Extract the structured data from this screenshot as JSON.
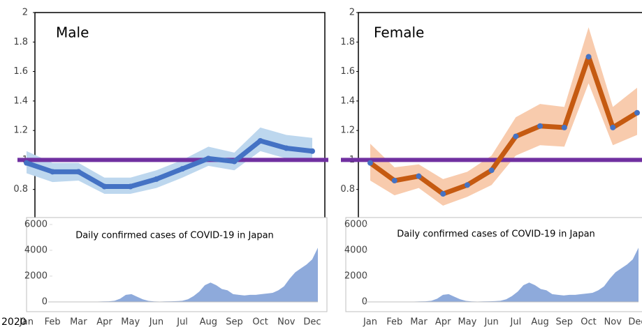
{
  "chart_data": [
    {
      "type": "line",
      "title": "Male",
      "xlabel": "2020",
      "categories": [
        "Jan",
        "Feb",
        "Mar",
        "Apr",
        "May",
        "Jun",
        "Jul",
        "Aug",
        "Sep",
        "Oct",
        "Nov",
        "Dec"
      ],
      "values": [
        0.98,
        0.92,
        0.92,
        0.82,
        0.82,
        0.87,
        0.94,
        1.01,
        0.99,
        1.13,
        1.08,
        1.06
      ],
      "upper": [
        1.06,
        0.98,
        0.98,
        0.88,
        0.88,
        0.93,
        1.0,
        1.09,
        1.05,
        1.22,
        1.17,
        1.15
      ],
      "lower": [
        0.91,
        0.85,
        0.86,
        0.77,
        0.77,
        0.81,
        0.88,
        0.96,
        0.93,
        1.06,
        1.01,
        0.99
      ],
      "color": "#4472c4",
      "band_color": "#bdd7ee",
      "marker_color": "#4472c4",
      "reference_line": {
        "value": 1,
        "color": "#7030a0"
      },
      "ylim": [
        0.6,
        2
      ],
      "yticks": [
        0.8,
        1,
        1.2,
        1.4,
        1.6,
        1.8,
        2
      ]
    },
    {
      "type": "area",
      "title": "Daily confirmed cases of COVID-19 in Japan",
      "values": [
        0,
        0,
        0,
        5,
        5,
        10,
        15,
        20,
        30,
        40,
        50,
        90,
        250,
        550,
        600,
        400,
        200,
        80,
        40,
        30,
        40,
        50,
        60,
        90,
        200,
        450,
        800,
        1300,
        1500,
        1300,
        1000,
        900,
        600,
        550,
        500,
        550,
        550,
        600,
        650,
        700,
        900,
        1200,
        1800,
        2300,
        2600,
        2900,
        3300,
        4200
      ],
      "color": "#8eaadb",
      "ylim": [
        0,
        6000
      ],
      "yticks": [
        0,
        2000,
        4000,
        6000
      ]
    },
    {
      "type": "line",
      "title": "Female",
      "categories": [
        "Jan",
        "Feb",
        "Mar",
        "Apr",
        "May",
        "Jun",
        "Jul",
        "Aug",
        "Sep",
        "Oct",
        "Nov",
        "Dec"
      ],
      "values": [
        0.98,
        0.86,
        0.89,
        0.77,
        0.83,
        0.93,
        1.16,
        1.23,
        1.22,
        1.7,
        1.22,
        1.32
      ],
      "upper": [
        1.11,
        0.95,
        0.97,
        0.87,
        0.92,
        1.03,
        1.29,
        1.38,
        1.36,
        1.9,
        1.36,
        1.49
      ],
      "lower": [
        0.86,
        0.76,
        0.81,
        0.69,
        0.75,
        0.83,
        1.03,
        1.1,
        1.09,
        1.52,
        1.1,
        1.17
      ],
      "color": "#c55a11",
      "band_color": "#f8cbad",
      "marker_color": "#4472c4",
      "reference_line": {
        "value": 1,
        "color": "#7030a0"
      },
      "ylim": [
        0.6,
        2
      ],
      "yticks": [
        0.8,
        1,
        1.2,
        1.4,
        1.6,
        1.8,
        2
      ]
    },
    {
      "type": "area",
      "title": "Daily confirmed cases of COVID-19 in Japan",
      "values": [
        0,
        0,
        0,
        5,
        5,
        10,
        15,
        20,
        30,
        40,
        50,
        90,
        250,
        550,
        600,
        400,
        200,
        80,
        40,
        30,
        40,
        50,
        60,
        90,
        200,
        450,
        800,
        1300,
        1500,
        1300,
        1000,
        900,
        600,
        550,
        500,
        550,
        550,
        600,
        650,
        700,
        900,
        1200,
        1800,
        2300,
        2600,
        2900,
        3300,
        4200
      ],
      "color": "#8eaadb",
      "ylim": [
        0,
        6000
      ],
      "yticks": [
        0,
        2000,
        4000,
        6000
      ]
    }
  ]
}
